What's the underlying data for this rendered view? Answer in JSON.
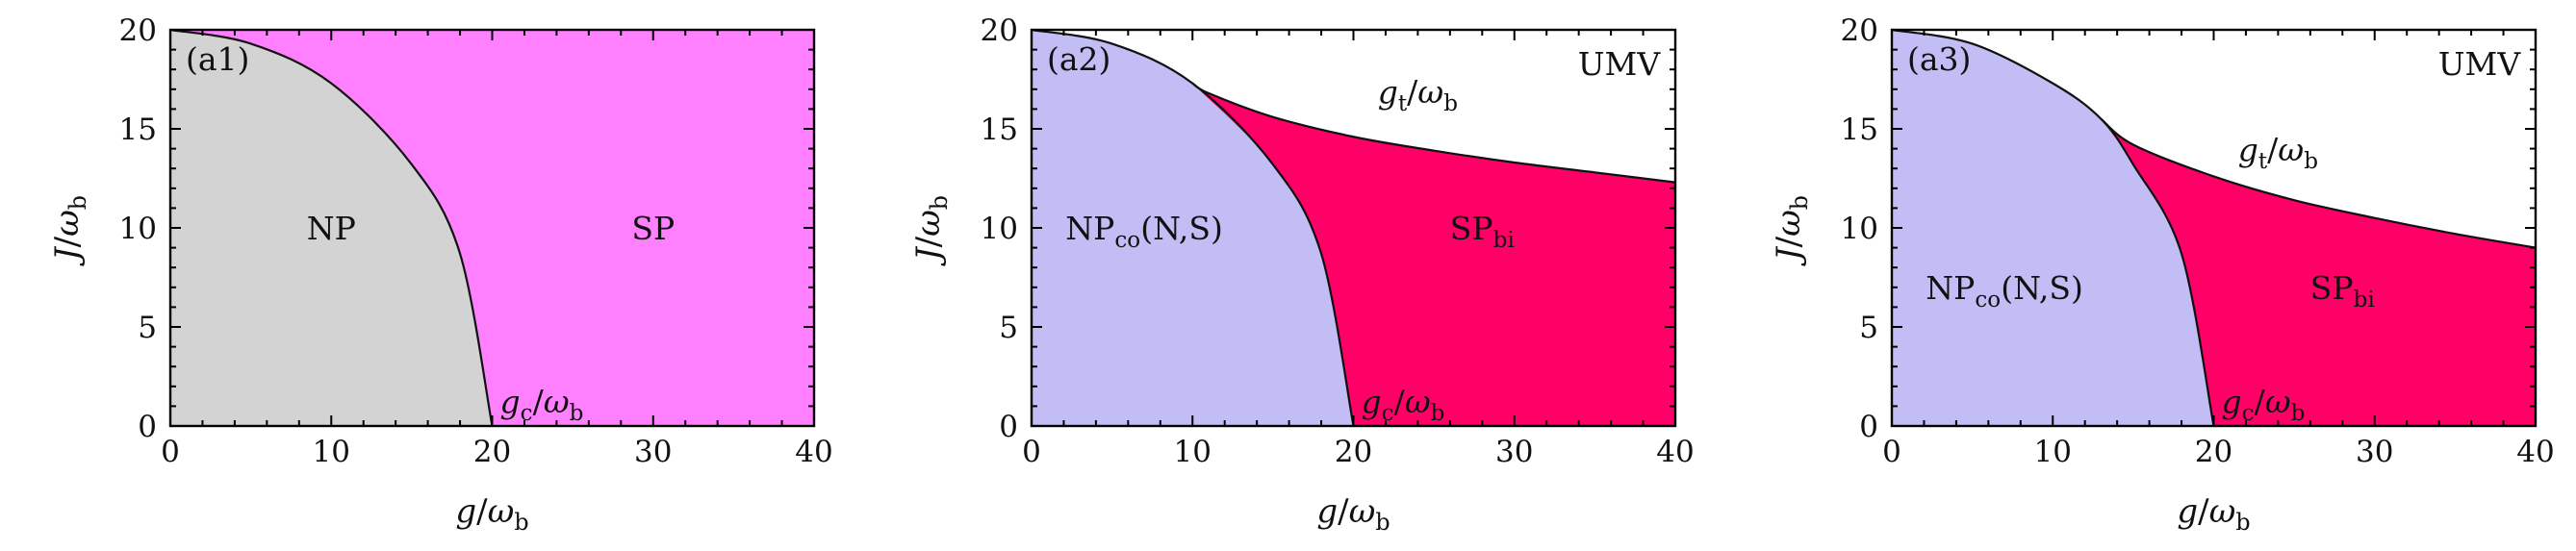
{
  "chart_data": [
    {
      "type": "area",
      "panel": "(a1)",
      "xlabel": {
        "base": "g",
        "sub": "b"
      },
      "ylabel": {
        "base": "J",
        "sub": "b"
      },
      "xlim": [
        0,
        40
      ],
      "ylim": [
        0,
        20
      ],
      "xticks": [
        "0",
        "10",
        "20",
        "30",
        "40"
      ],
      "yticks": [
        "0",
        "5",
        "10",
        "15",
        "20"
      ],
      "regions": [
        {
          "name": "NP",
          "color": "#d3d3d3"
        },
        {
          "name": "SP",
          "color": "#ff80ff"
        }
      ],
      "boundaries": [
        {
          "label": {
            "base": "g",
            "sub": "c"
          },
          "x": [
            0,
            5,
            10,
            15,
            18,
            20
          ],
          "y": [
            20,
            19.3,
            17.3,
            13.2,
            8.7,
            0
          ]
        }
      ],
      "annotations": []
    },
    {
      "type": "area",
      "panel": "(a2)",
      "xlabel": {
        "base": "g",
        "sub": "b"
      },
      "ylabel": {
        "base": "J",
        "sub": "b"
      },
      "xlim": [
        0,
        40
      ],
      "ylim": [
        0,
        20
      ],
      "xticks": [
        "0",
        "10",
        "20",
        "30",
        "40"
      ],
      "yticks": [
        "0",
        "5",
        "10",
        "15",
        "20"
      ],
      "regions": [
        {
          "name": "NP",
          "sub": "co",
          "suffix": "(N,S)",
          "color": "#c2bdf5"
        },
        {
          "name": "SP",
          "sub": "bi",
          "color": "#ff0066"
        },
        {
          "name": "UMV",
          "color": "#ffffff"
        }
      ],
      "boundaries": [
        {
          "label": {
            "base": "g",
            "sub": "c"
          },
          "x": [
            0,
            5,
            10,
            15,
            18,
            20
          ],
          "y": [
            20,
            19.3,
            17.3,
            13.2,
            8.7,
            0
          ]
        },
        {
          "label": {
            "base": "g",
            "sub": "t"
          },
          "x": [
            10,
            11,
            15,
            20,
            25,
            30,
            35,
            40
          ],
          "y": [
            17.3,
            16.8,
            15.6,
            14.6,
            13.9,
            13.3,
            12.8,
            12.3
          ]
        }
      ],
      "annotations": []
    },
    {
      "type": "area",
      "panel": "(a3)",
      "xlabel": {
        "base": "g",
        "sub": "b"
      },
      "ylabel": {
        "base": "J",
        "sub": "b"
      },
      "xlim": [
        0,
        40
      ],
      "ylim": [
        0,
        20
      ],
      "xticks": [
        "0",
        "10",
        "20",
        "30",
        "40"
      ],
      "yticks": [
        "0",
        "5",
        "10",
        "15",
        "20"
      ],
      "regions": [
        {
          "name": "NP",
          "sub": "co",
          "suffix": "(N,S)",
          "color": "#c2bdf5"
        },
        {
          "name": "SP",
          "sub": "bi",
          "color": "#ff0066"
        },
        {
          "name": "UMV",
          "color": "#ffffff"
        }
      ],
      "boundaries": [
        {
          "label": {
            "base": "g",
            "sub": "c"
          },
          "x": [
            0,
            5,
            10,
            13,
            15,
            18,
            20
          ],
          "y": [
            20,
            19.3,
            17.3,
            15.5,
            13.2,
            8.7,
            0
          ]
        },
        {
          "label": {
            "base": "g",
            "sub": "t"
          },
          "x": [
            13,
            15,
            20,
            25,
            30,
            35,
            40
          ],
          "y": [
            15.5,
            14.2,
            12.6,
            11.4,
            10.5,
            9.7,
            9.0
          ]
        }
      ],
      "annotations": []
    }
  ]
}
